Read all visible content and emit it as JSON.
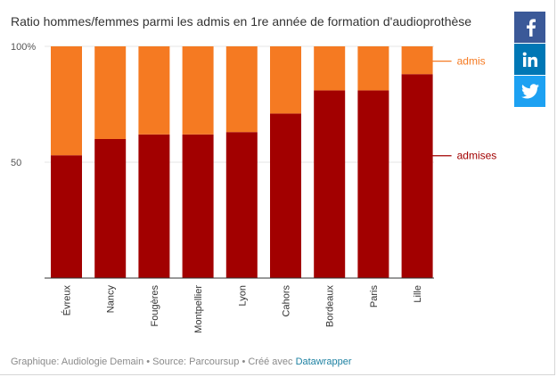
{
  "title": "Ratio hommes/femmes parmi les admis en 1re année de formation d'audioprothèse",
  "footer": {
    "prefix": "Graphique: Audiologie Demain • Source: Parcoursup • Créé avec",
    "link": "Datawrapper"
  },
  "share": [
    {
      "name": "facebook",
      "icon": "facebook-icon",
      "glyph": "f"
    },
    {
      "name": "linkedin",
      "icon": "linkedin-icon",
      "glyph": "in"
    },
    {
      "name": "twitter",
      "icon": "twitter-icon",
      "glyph": "bird"
    }
  ],
  "chart_data": {
    "type": "bar",
    "stacked": true,
    "title": "Ratio hommes/femmes parmi les admis en 1re année de formation d'audioprothèse",
    "categories": [
      "Évreux",
      "Nancy",
      "Fougères",
      "Montpellier",
      "Lyon",
      "Cahors",
      "Bordeaux",
      "Paris",
      "Lille"
    ],
    "series": [
      {
        "name": "admises",
        "color": "#a20000",
        "values": [
          53,
          60,
          62,
          62,
          63,
          71,
          81,
          81,
          88
        ]
      },
      {
        "name": "admis",
        "color": "#f57a22",
        "values": [
          47,
          40,
          38,
          38,
          37,
          29,
          19,
          19,
          12
        ]
      }
    ],
    "ylim": [
      0,
      100
    ],
    "yticks": [
      {
        "value": 100,
        "label": "100%"
      },
      {
        "value": 50,
        "label": "50"
      }
    ],
    "legend_placement": "right, inline labels",
    "xlabel": "",
    "ylabel": ""
  }
}
